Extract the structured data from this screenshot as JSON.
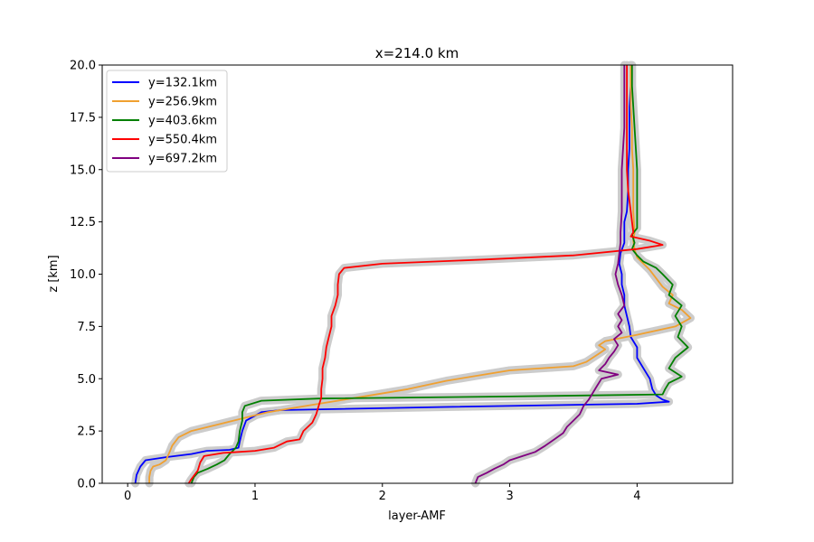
{
  "chart_data": {
    "type": "line",
    "title": "x=214.0 km",
    "xlabel": "layer-AMF",
    "ylabel": "z [km]",
    "xlim": [
      -0.2,
      4.75
    ],
    "ylim": [
      0,
      20
    ],
    "xticks": [
      0,
      1,
      2,
      3,
      4
    ],
    "xtick_labels": [
      "0",
      "1",
      "2",
      "3",
      "4"
    ],
    "yticks": [
      0,
      2.5,
      5,
      7.5,
      10,
      12.5,
      15,
      17.5,
      20
    ],
    "ytick_labels": [
      "0.0",
      "2.5",
      "5.0",
      "7.5",
      "10.0",
      "12.5",
      "15.0",
      "17.5",
      "20.0"
    ],
    "grid": false,
    "legend_position": "upper-left",
    "uncertainty_band_color": "#cccccc",
    "series": [
      {
        "name": "y=132.1km",
        "color": "#0000ff",
        "points": [
          [
            0.06,
            0
          ],
          [
            0.07,
            0.4
          ],
          [
            0.1,
            0.8
          ],
          [
            0.14,
            1.1
          ],
          [
            0.3,
            1.25
          ],
          [
            0.5,
            1.4
          ],
          [
            0.62,
            1.55
          ],
          [
            0.8,
            1.6
          ],
          [
            0.87,
            1.7
          ],
          [
            0.88,
            2
          ],
          [
            0.9,
            2.5
          ],
          [
            0.93,
            3
          ],
          [
            1.05,
            3.4
          ],
          [
            1.2,
            3.5
          ],
          [
            2.5,
            3.65
          ],
          [
            4.0,
            3.8
          ],
          [
            4.25,
            3.9
          ],
          [
            4.2,
            4.0
          ],
          [
            4.15,
            4.2
          ],
          [
            4.12,
            4.5
          ],
          [
            4.1,
            5
          ],
          [
            4.05,
            5.5
          ],
          [
            4.0,
            6
          ],
          [
            4.0,
            6.5
          ],
          [
            3.95,
            7
          ],
          [
            3.94,
            7.5
          ],
          [
            3.92,
            8
          ],
          [
            3.9,
            8.5
          ],
          [
            3.9,
            9
          ],
          [
            3.88,
            9.5
          ],
          [
            3.88,
            10
          ],
          [
            3.86,
            10.5
          ],
          [
            3.87,
            11
          ],
          [
            3.9,
            11.5
          ],
          [
            3.9,
            12
          ],
          [
            3.9,
            12.5
          ],
          [
            3.92,
            13
          ],
          [
            3.93,
            14
          ],
          [
            3.93,
            15
          ],
          [
            3.94,
            16
          ],
          [
            3.94,
            17
          ],
          [
            3.94,
            18
          ],
          [
            3.95,
            19
          ],
          [
            3.95,
            20
          ]
        ]
      },
      {
        "name": "y=256.9km",
        "color": "#f0a030",
        "points": [
          [
            0.17,
            0
          ],
          [
            0.17,
            0.3
          ],
          [
            0.18,
            0.6
          ],
          [
            0.2,
            0.8
          ],
          [
            0.25,
            0.9
          ],
          [
            0.3,
            1.1
          ],
          [
            0.33,
            1.5
          ],
          [
            0.35,
            1.8
          ],
          [
            0.4,
            2.2
          ],
          [
            0.5,
            2.5
          ],
          [
            0.7,
            2.8
          ],
          [
            0.9,
            3.1
          ],
          [
            1.1,
            3.4
          ],
          [
            1.5,
            3.8
          ],
          [
            1.9,
            4.2
          ],
          [
            2.2,
            4.5
          ],
          [
            2.5,
            4.9
          ],
          [
            2.8,
            5.2
          ],
          [
            3.0,
            5.4
          ],
          [
            3.5,
            5.6
          ],
          [
            3.6,
            5.8
          ],
          [
            3.7,
            6.2
          ],
          [
            3.75,
            6.4
          ],
          [
            3.7,
            6.6
          ],
          [
            3.75,
            6.8
          ],
          [
            4.0,
            7.1
          ],
          [
            4.3,
            7.5
          ],
          [
            4.42,
            7.9
          ],
          [
            4.35,
            8.3
          ],
          [
            4.25,
            8.6
          ],
          [
            4.28,
            9.0
          ],
          [
            4.2,
            9.4
          ],
          [
            4.15,
            9.8
          ],
          [
            4.1,
            10.2
          ],
          [
            4.05,
            10.5
          ],
          [
            4.0,
            10.8
          ],
          [
            3.98,
            11.2
          ],
          [
            3.97,
            11.6
          ],
          [
            3.98,
            12
          ],
          [
            3.97,
            13
          ],
          [
            3.97,
            14
          ],
          [
            3.97,
            15
          ],
          [
            3.96,
            16
          ],
          [
            3.96,
            17
          ],
          [
            3.95,
            18
          ],
          [
            3.95,
            19
          ],
          [
            3.95,
            20
          ]
        ]
      },
      {
        "name": "y=403.6km",
        "color": "#008000",
        "points": [
          [
            0.5,
            0
          ],
          [
            0.52,
            0.3
          ],
          [
            0.55,
            0.5
          ],
          [
            0.63,
            0.7
          ],
          [
            0.7,
            0.9
          ],
          [
            0.76,
            1.1
          ],
          [
            0.8,
            1.4
          ],
          [
            0.85,
            1.7
          ],
          [
            0.87,
            2.0
          ],
          [
            0.88,
            2.5
          ],
          [
            0.9,
            3.0
          ],
          [
            0.9,
            3.4
          ],
          [
            0.92,
            3.7
          ],
          [
            1.05,
            3.95
          ],
          [
            1.5,
            4.05
          ],
          [
            3.0,
            4.15
          ],
          [
            4.2,
            4.25
          ],
          [
            4.22,
            4.5
          ],
          [
            4.25,
            4.8
          ],
          [
            4.35,
            5.1
          ],
          [
            4.25,
            5.5
          ],
          [
            4.3,
            6.0
          ],
          [
            4.4,
            6.5
          ],
          [
            4.32,
            7.0
          ],
          [
            4.35,
            7.5
          ],
          [
            4.3,
            8.0
          ],
          [
            4.35,
            8.5
          ],
          [
            4.25,
            9.0
          ],
          [
            4.28,
            9.5
          ],
          [
            4.2,
            10.0
          ],
          [
            4.15,
            10.3
          ],
          [
            4.05,
            10.6
          ],
          [
            4.0,
            10.9
          ],
          [
            3.96,
            11.2
          ],
          [
            3.98,
            11.5
          ],
          [
            3.96,
            11.9
          ],
          [
            4.0,
            12.2
          ],
          [
            4.0,
            13
          ],
          [
            4.0,
            14
          ],
          [
            4.0,
            15
          ],
          [
            3.99,
            16
          ],
          [
            3.98,
            17
          ],
          [
            3.97,
            18
          ],
          [
            3.96,
            19
          ],
          [
            3.96,
            20
          ]
        ]
      },
      {
        "name": "y=550.4km",
        "color": "#ff0000",
        "points": [
          [
            0.48,
            0
          ],
          [
            0.5,
            0.2
          ],
          [
            0.55,
            0.6
          ],
          [
            0.57,
            1.0
          ],
          [
            0.6,
            1.3
          ],
          [
            0.75,
            1.45
          ],
          [
            1.0,
            1.55
          ],
          [
            1.15,
            1.7
          ],
          [
            1.25,
            2.0
          ],
          [
            1.35,
            2.1
          ],
          [
            1.38,
            2.5
          ],
          [
            1.45,
            2.9
          ],
          [
            1.48,
            3.3
          ],
          [
            1.5,
            3.7
          ],
          [
            1.52,
            4.1
          ],
          [
            1.52,
            4.5
          ],
          [
            1.53,
            5.0
          ],
          [
            1.53,
            5.5
          ],
          [
            1.55,
            6.0
          ],
          [
            1.56,
            6.5
          ],
          [
            1.58,
            7.0
          ],
          [
            1.6,
            7.5
          ],
          [
            1.6,
            8.0
          ],
          [
            1.63,
            8.5
          ],
          [
            1.65,
            9.0
          ],
          [
            1.65,
            9.5
          ],
          [
            1.66,
            10.0
          ],
          [
            1.7,
            10.3
          ],
          [
            2.0,
            10.5
          ],
          [
            2.8,
            10.7
          ],
          [
            3.5,
            10.9
          ],
          [
            4.0,
            11.2
          ],
          [
            4.2,
            11.4
          ],
          [
            4.1,
            11.6
          ],
          [
            3.95,
            11.8
          ],
          [
            3.97,
            12.0
          ],
          [
            3.95,
            13
          ],
          [
            3.93,
            14
          ],
          [
            3.92,
            15
          ],
          [
            3.92,
            16
          ],
          [
            3.92,
            17
          ],
          [
            3.92,
            18
          ],
          [
            3.92,
            19
          ],
          [
            3.92,
            20
          ]
        ]
      },
      {
        "name": "y=697.2km",
        "color": "#800080",
        "points": [
          [
            2.73,
            0
          ],
          [
            2.75,
            0.3
          ],
          [
            2.82,
            0.5
          ],
          [
            2.88,
            0.7
          ],
          [
            2.95,
            0.9
          ],
          [
            3.0,
            1.1
          ],
          [
            3.1,
            1.3
          ],
          [
            3.2,
            1.5
          ],
          [
            3.28,
            1.8
          ],
          [
            3.35,
            2.1
          ],
          [
            3.42,
            2.4
          ],
          [
            3.45,
            2.7
          ],
          [
            3.5,
            3.0
          ],
          [
            3.55,
            3.3
          ],
          [
            3.58,
            3.7
          ],
          [
            3.62,
            4.0
          ],
          [
            3.65,
            4.3
          ],
          [
            3.68,
            4.6
          ],
          [
            3.72,
            5.0
          ],
          [
            3.85,
            5.2
          ],
          [
            3.7,
            5.4
          ],
          [
            3.75,
            5.7
          ],
          [
            3.78,
            6.0
          ],
          [
            3.82,
            6.3
          ],
          [
            3.85,
            6.6
          ],
          [
            3.82,
            6.9
          ],
          [
            3.88,
            7.2
          ],
          [
            3.85,
            7.5
          ],
          [
            3.88,
            7.8
          ],
          [
            3.85,
            8.1
          ],
          [
            3.9,
            8.5
          ],
          [
            3.88,
            9.0
          ],
          [
            3.85,
            9.5
          ],
          [
            3.83,
            10.0
          ],
          [
            3.85,
            10.5
          ],
          [
            3.86,
            11
          ],
          [
            3.87,
            11.5
          ],
          [
            3.87,
            12
          ],
          [
            3.88,
            13
          ],
          [
            3.88,
            14
          ],
          [
            3.88,
            15
          ],
          [
            3.89,
            16
          ],
          [
            3.9,
            17
          ],
          [
            3.9,
            18
          ],
          [
            3.9,
            19
          ],
          [
            3.9,
            20
          ]
        ]
      }
    ]
  }
}
